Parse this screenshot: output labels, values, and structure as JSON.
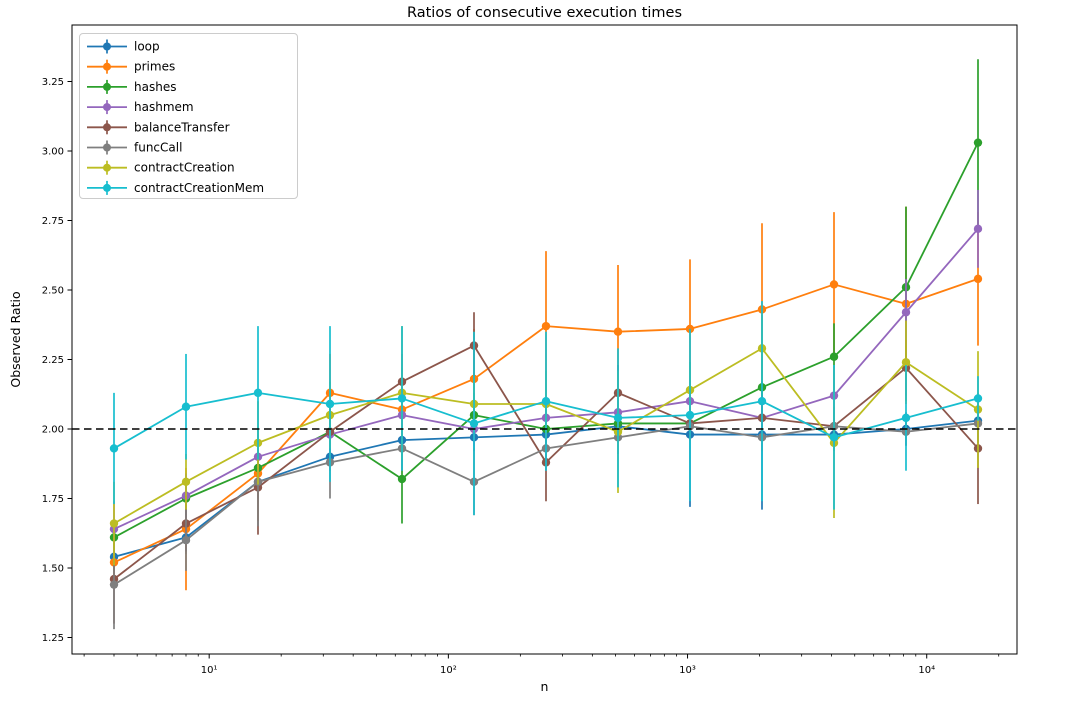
{
  "figure": {
    "background": "#ffffff",
    "spine_color": "#000000"
  },
  "chart_data": {
    "type": "line",
    "title": "Ratios of consecutive execution times",
    "xlabel": "n",
    "ylabel": "Observed Ratio",
    "x_scale": "log",
    "grid": false,
    "legend_position": "upper left",
    "xlim": [
      2.7,
      23900
    ],
    "ylim": [
      1.19,
      3.45
    ],
    "x": [
      4,
      8,
      16,
      32,
      64,
      128,
      256,
      512,
      1024,
      2048,
      4096,
      8192,
      16384
    ],
    "x_major_ticks": [
      10,
      100,
      1000,
      10000
    ],
    "x_major_tick_labels": [
      "10¹",
      "10²",
      "10³",
      "10⁴"
    ],
    "y_ticks": [
      1.25,
      1.5,
      1.75,
      2.0,
      2.25,
      2.5,
      2.75,
      3.0,
      3.25
    ],
    "y_tick_labels": [
      "1.25",
      "1.50",
      "1.75",
      "2.00",
      "2.25",
      "2.50",
      "2.75",
      "3.00",
      "3.25"
    ],
    "reference_line": {
      "y": 2.0,
      "style": "dashed",
      "color": "#000000"
    },
    "series": [
      {
        "name": "loop",
        "color": "#1f77b4",
        "values": [
          1.54,
          1.61,
          1.81,
          1.9,
          1.96,
          1.97,
          1.98,
          2.01,
          1.98,
          1.98,
          1.98,
          2.0,
          2.03
        ],
        "yerr": [
          0.05,
          0.06,
          0.06,
          0.05,
          0.05,
          0.05,
          0.05,
          0.06,
          0.26,
          0.27,
          0.06,
          0.06,
          0.08
        ]
      },
      {
        "name": "primes",
        "color": "#ff7f0e",
        "values": [
          1.52,
          1.64,
          1.84,
          2.13,
          2.07,
          2.18,
          2.37,
          2.35,
          2.36,
          2.43,
          2.52,
          2.45,
          2.54
        ],
        "yerr": [
          0.05,
          0.22,
          0.17,
          0.14,
          0.15,
          0.18,
          0.27,
          0.24,
          0.25,
          0.31,
          0.26,
          0.35,
          0.24
        ]
      },
      {
        "name": "hashes",
        "color": "#2ca02c",
        "values": [
          1.61,
          1.75,
          1.86,
          1.99,
          1.82,
          2.05,
          2.0,
          2.02,
          2.02,
          2.15,
          2.26,
          2.51,
          3.03
        ],
        "yerr": [
          0.05,
          0.06,
          0.06,
          0.09,
          0.16,
          0.08,
          0.07,
          0.06,
          0.06,
          0.1,
          0.12,
          0.29,
          0.3
        ]
      },
      {
        "name": "hashmem",
        "color": "#9467bd",
        "values": [
          1.64,
          1.76,
          1.9,
          1.98,
          2.05,
          2.0,
          2.04,
          2.06,
          2.1,
          2.04,
          2.12,
          2.42,
          2.72
        ],
        "yerr": [
          0.1,
          0.08,
          0.08,
          0.07,
          0.07,
          0.06,
          0.06,
          0.06,
          0.07,
          0.08,
          0.1,
          0.12,
          0.14
        ]
      },
      {
        "name": "balanceTransfer",
        "color": "#8c564b",
        "values": [
          1.46,
          1.66,
          1.79,
          1.99,
          2.17,
          2.3,
          1.88,
          2.13,
          2.02,
          2.04,
          2.01,
          2.22,
          1.93
        ],
        "yerr": [
          0.16,
          0.1,
          0.17,
          0.08,
          0.1,
          0.12,
          0.14,
          0.1,
          0.06,
          0.08,
          0.07,
          0.1,
          0.2
        ]
      },
      {
        "name": "funcCall",
        "color": "#7f7f7f",
        "values": [
          1.44,
          1.6,
          1.81,
          1.88,
          1.93,
          1.81,
          1.93,
          1.97,
          2.01,
          1.97,
          2.01,
          1.99,
          2.02
        ],
        "yerr": [
          0.16,
          0.11,
          0.16,
          0.13,
          0.08,
          0.12,
          0.08,
          0.06,
          0.05,
          0.05,
          0.05,
          0.05,
          0.06
        ]
      },
      {
        "name": "contractCreation",
        "color": "#bcbd22",
        "values": [
          1.66,
          1.81,
          1.95,
          2.05,
          2.13,
          2.09,
          2.09,
          1.99,
          2.14,
          2.29,
          1.95,
          2.24,
          2.07
        ],
        "yerr": [
          0.15,
          0.1,
          0.15,
          0.12,
          0.24,
          0.1,
          0.12,
          0.22,
          0.1,
          0.12,
          0.27,
          0.15,
          0.21
        ]
      },
      {
        "name": "contractCreationMem",
        "color": "#17becf",
        "values": [
          1.93,
          2.08,
          2.13,
          2.09,
          2.11,
          2.02,
          2.1,
          2.04,
          2.05,
          2.1,
          1.97,
          2.04,
          2.11
        ],
        "yerr": [
          0.2,
          0.19,
          0.24,
          0.28,
          0.26,
          0.33,
          0.25,
          0.25,
          0.31,
          0.36,
          0.26,
          0.19,
          0.08
        ]
      }
    ]
  }
}
